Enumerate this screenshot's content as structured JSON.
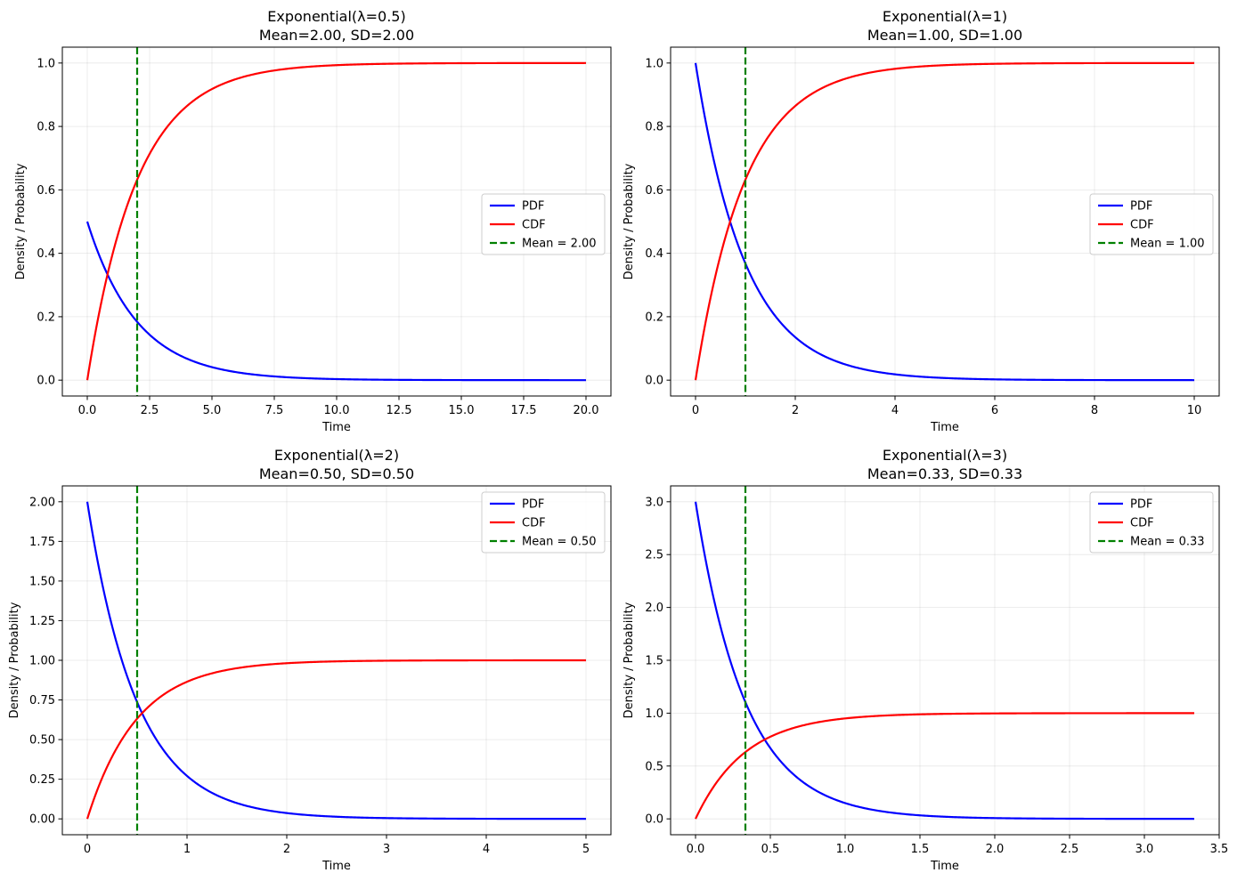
{
  "chart_data": [
    {
      "type": "line",
      "title_line1": "Exponential(λ=0.5)",
      "title_line2": "Mean=2.00, SD=2.00",
      "xlabel": "Time",
      "ylabel": "Density / Probability",
      "rate": 0.5,
      "x_max": 20.0,
      "xlim": [
        -1.0,
        21.0
      ],
      "ylim": [
        -0.05,
        1.05
      ],
      "xticks": [
        0.0,
        2.5,
        5.0,
        7.5,
        10.0,
        12.5,
        15.0,
        17.5,
        20.0
      ],
      "xtick_labels": [
        "0.0",
        "2.5",
        "5.0",
        "7.5",
        "10.0",
        "12.5",
        "15.0",
        "17.5",
        "20.0"
      ],
      "yticks": [
        0.0,
        0.2,
        0.4,
        0.6,
        0.8,
        1.0
      ],
      "ytick_labels": [
        "0.0",
        "0.2",
        "0.4",
        "0.6",
        "0.8",
        "1.0"
      ],
      "mean": 2.0,
      "legend_position": "center-right",
      "grid": true,
      "series": [
        {
          "name": "PDF",
          "label": "PDF",
          "formula": "rate*exp(-rate*x)",
          "color": "#0000ff"
        },
        {
          "name": "CDF",
          "label": "CDF",
          "formula": "1-exp(-rate*x)",
          "color": "#ff0000"
        },
        {
          "name": "Mean",
          "label": "Mean = 2.00",
          "formula": "vertical line x=mean",
          "color": "#008000",
          "dashed": true
        }
      ]
    },
    {
      "type": "line",
      "title_line1": "Exponential(λ=1)",
      "title_line2": "Mean=1.00, SD=1.00",
      "xlabel": "Time",
      "ylabel": "Density / Probability",
      "rate": 1.0,
      "x_max": 10.0,
      "xlim": [
        -0.5,
        10.5
      ],
      "ylim": [
        -0.05,
        1.05
      ],
      "xticks": [
        0,
        2,
        4,
        6,
        8,
        10
      ],
      "xtick_labels": [
        "0",
        "2",
        "4",
        "6",
        "8",
        "10"
      ],
      "yticks": [
        0.0,
        0.2,
        0.4,
        0.6,
        0.8,
        1.0
      ],
      "ytick_labels": [
        "0.0",
        "0.2",
        "0.4",
        "0.6",
        "0.8",
        "1.0"
      ],
      "mean": 1.0,
      "legend_position": "center-right",
      "grid": true,
      "series": [
        {
          "name": "PDF",
          "label": "PDF",
          "formula": "rate*exp(-rate*x)",
          "color": "#0000ff"
        },
        {
          "name": "CDF",
          "label": "CDF",
          "formula": "1-exp(-rate*x)",
          "color": "#ff0000"
        },
        {
          "name": "Mean",
          "label": "Mean = 1.00",
          "formula": "vertical line x=mean",
          "color": "#008000",
          "dashed": true
        }
      ]
    },
    {
      "type": "line",
      "title_line1": "Exponential(λ=2)",
      "title_line2": "Mean=0.50, SD=0.50",
      "xlabel": "Time",
      "ylabel": "Density / Probability",
      "rate": 2.0,
      "x_max": 5.0,
      "xlim": [
        -0.25,
        5.25
      ],
      "ylim": [
        -0.1,
        2.1
      ],
      "xticks": [
        0,
        1,
        2,
        3,
        4,
        5
      ],
      "xtick_labels": [
        "0",
        "1",
        "2",
        "3",
        "4",
        "5"
      ],
      "yticks": [
        0.0,
        0.25,
        0.5,
        0.75,
        1.0,
        1.25,
        1.5,
        1.75,
        2.0
      ],
      "ytick_labels": [
        "0.00",
        "0.25",
        "0.50",
        "0.75",
        "1.00",
        "1.25",
        "1.50",
        "1.75",
        "2.00"
      ],
      "mean": 0.5,
      "legend_position": "top-right",
      "grid": true,
      "series": [
        {
          "name": "PDF",
          "label": "PDF",
          "formula": "rate*exp(-rate*x)",
          "color": "#0000ff"
        },
        {
          "name": "CDF",
          "label": "CDF",
          "formula": "1-exp(-rate*x)",
          "color": "#ff0000"
        },
        {
          "name": "Mean",
          "label": "Mean = 0.50",
          "formula": "vertical line x=mean",
          "color": "#008000",
          "dashed": true
        }
      ]
    },
    {
      "type": "line",
      "title_line1": "Exponential(λ=3)",
      "title_line2": "Mean=0.33, SD=0.33",
      "xlabel": "Time",
      "ylabel": "Density / Probability",
      "rate": 3.0,
      "x_max": 3.3333,
      "xlim": [
        -0.1667,
        3.5
      ],
      "ylim": [
        -0.15,
        3.15
      ],
      "xticks": [
        0.0,
        0.5,
        1.0,
        1.5,
        2.0,
        2.5,
        3.0,
        3.5
      ],
      "xtick_labels": [
        "0.0",
        "0.5",
        "1.0",
        "1.5",
        "2.0",
        "2.5",
        "3.0",
        "3.5"
      ],
      "yticks": [
        0.0,
        0.5,
        1.0,
        1.5,
        2.0,
        2.5,
        3.0
      ],
      "ytick_labels": [
        "0.0",
        "0.5",
        "1.0",
        "1.5",
        "2.0",
        "2.5",
        "3.0"
      ],
      "mean": 0.3333,
      "legend_position": "top-right",
      "grid": true,
      "series": [
        {
          "name": "PDF",
          "label": "PDF",
          "formula": "rate*exp(-rate*x)",
          "color": "#0000ff"
        },
        {
          "name": "CDF",
          "label": "CDF",
          "formula": "1-exp(-rate*x)",
          "color": "#ff0000"
        },
        {
          "name": "Mean",
          "label": "Mean = 0.33",
          "formula": "vertical line x=mean",
          "color": "#008000",
          "dashed": true
        }
      ]
    }
  ]
}
